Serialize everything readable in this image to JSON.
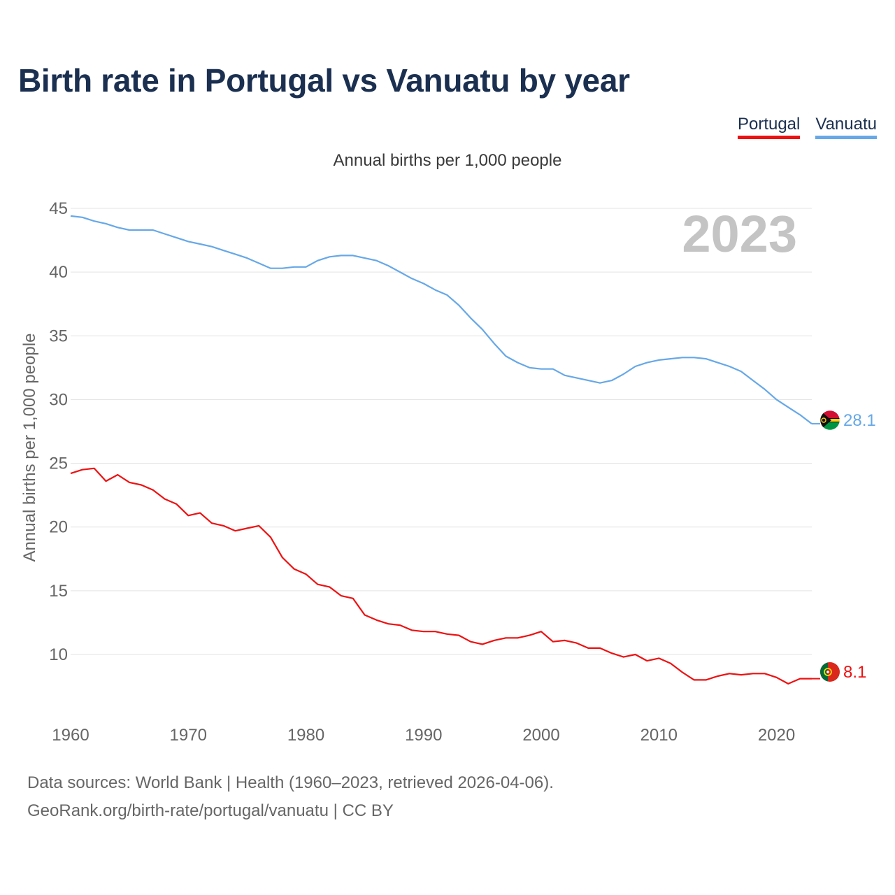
{
  "title": "Birth rate in Portugal vs Vanuatu by year",
  "subtitle": "Annual births per 1,000 people",
  "legend": [
    {
      "name": "Portugal",
      "color": "#ee1111"
    },
    {
      "name": "Vanuatu",
      "color": "#66a8e8"
    }
  ],
  "year_overlay": "2023",
  "footer": {
    "line1": "Data sources: World Bank | Health (1960–2023, retrieved 2026-04-06).",
    "line2": "GeoRank.org/birth-rate/portugal/vanuatu | CC BY"
  },
  "colors": {
    "portugal": "#ee1111",
    "vanuatu": "#66a8e8",
    "title": "#1b3050",
    "grid": "#e3e3e3",
    "tick_text": "#666666",
    "year_overlay": "#c4c4c4"
  },
  "chart_data": {
    "type": "line",
    "title": "Birth rate in Portugal vs Vanuatu by year",
    "subtitle": "Annual births per 1,000 people",
    "xlabel": "",
    "ylabel": "Annual births per 1,000 people",
    "xlim": [
      1960,
      2023
    ],
    "ylim": [
      5.5,
      45
    ],
    "x_ticks": [
      1960,
      1970,
      1980,
      1990,
      2000,
      2010,
      2020
    ],
    "y_ticks": [
      10,
      15,
      20,
      25,
      30,
      35,
      40,
      45
    ],
    "grid": true,
    "legend_position": "top-right",
    "x": [
      1960,
      1961,
      1962,
      1963,
      1964,
      1965,
      1966,
      1967,
      1968,
      1969,
      1970,
      1971,
      1972,
      1973,
      1974,
      1975,
      1976,
      1977,
      1978,
      1979,
      1980,
      1981,
      1982,
      1983,
      1984,
      1985,
      1986,
      1987,
      1988,
      1989,
      1990,
      1991,
      1992,
      1993,
      1994,
      1995,
      1996,
      1997,
      1998,
      1999,
      2000,
      2001,
      2002,
      2003,
      2004,
      2005,
      2006,
      2007,
      2008,
      2009,
      2010,
      2011,
      2012,
      2013,
      2014,
      2015,
      2016,
      2017,
      2018,
      2019,
      2020,
      2021,
      2022,
      2023
    ],
    "series": [
      {
        "name": "Portugal",
        "color": "#ee1111",
        "end_label": "8.1",
        "flag": "portugal-flag",
        "values": [
          24.2,
          24.5,
          24.6,
          23.6,
          24.1,
          23.5,
          23.3,
          22.9,
          22.2,
          21.8,
          20.9,
          21.1,
          20.3,
          20.1,
          19.7,
          19.9,
          20.1,
          19.2,
          17.6,
          16.7,
          16.3,
          15.5,
          15.3,
          14.6,
          14.4,
          13.1,
          12.7,
          12.4,
          12.3,
          11.9,
          11.8,
          11.8,
          11.6,
          11.5,
          11.0,
          10.8,
          11.1,
          11.3,
          11.3,
          11.5,
          11.8,
          11.0,
          11.1,
          10.9,
          10.5,
          10.5,
          10.1,
          9.8,
          10.0,
          9.5,
          9.7,
          9.3,
          8.6,
          8.0,
          8.0,
          8.3,
          8.5,
          8.4,
          8.5,
          8.5,
          8.2,
          7.7,
          8.1,
          8.1
        ]
      },
      {
        "name": "Vanuatu",
        "color": "#66a8e8",
        "end_label": "28.1",
        "flag": "vanuatu-flag",
        "values": [
          44.4,
          44.3,
          44.0,
          43.8,
          43.5,
          43.3,
          43.3,
          43.3,
          43.0,
          42.7,
          42.4,
          42.2,
          42.0,
          41.7,
          41.4,
          41.1,
          40.7,
          40.3,
          40.3,
          40.4,
          40.4,
          40.9,
          41.2,
          41.3,
          41.3,
          41.1,
          40.9,
          40.5,
          40.0,
          39.5,
          39.1,
          38.6,
          38.2,
          37.4,
          36.4,
          35.5,
          34.4,
          33.4,
          32.9,
          32.5,
          32.4,
          32.4,
          31.9,
          31.7,
          31.5,
          31.3,
          31.5,
          32.0,
          32.6,
          32.9,
          33.1,
          33.2,
          33.3,
          33.3,
          33.2,
          32.9,
          32.6,
          32.2,
          31.5,
          30.8,
          30.0,
          29.4,
          28.8,
          28.1
        ]
      }
    ]
  }
}
